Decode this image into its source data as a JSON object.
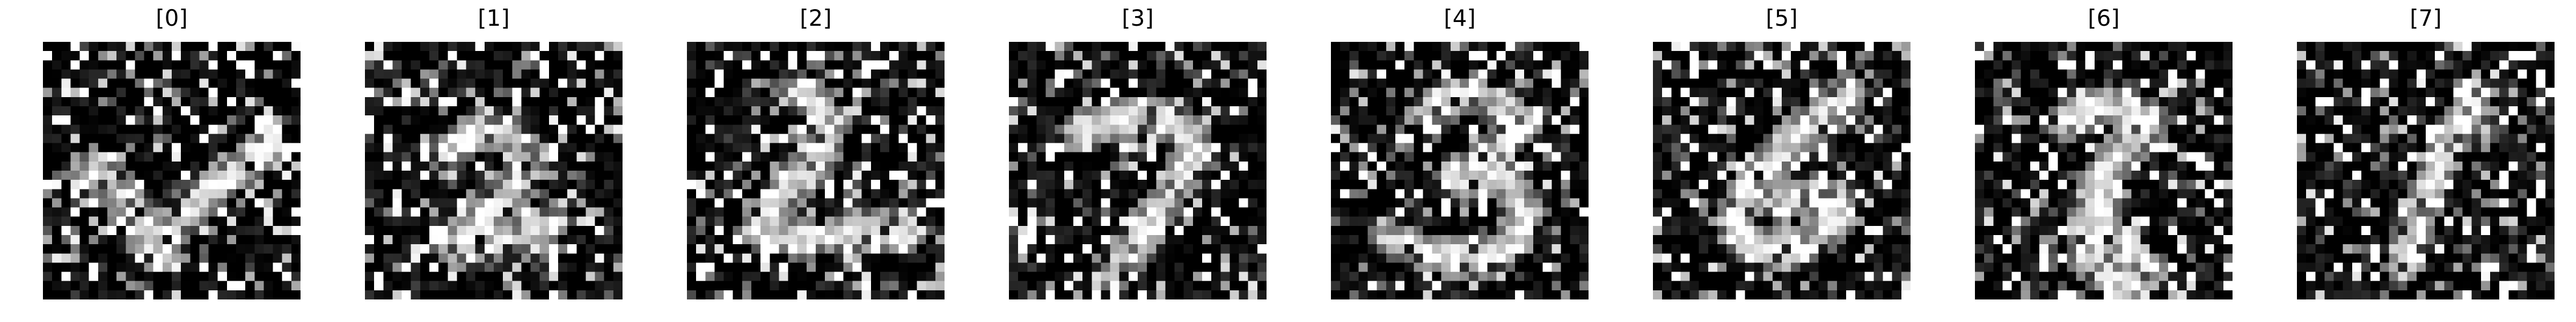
{
  "figure": {
    "background": "#ffffff",
    "colormap": "gray",
    "panels": [
      {
        "title": "[0]",
        "content": "noisy-digit-4-like"
      },
      {
        "title": "[1]",
        "content": "noisy-digit-2"
      },
      {
        "title": "[2]",
        "content": "noisy-digit-2"
      },
      {
        "title": "[3]",
        "content": "noisy-digit-7"
      },
      {
        "title": "[4]",
        "content": "noisy-digit-3"
      },
      {
        "title": "[5]",
        "content": "noisy-digit-6"
      },
      {
        "title": "[6]",
        "content": "noisy-digit-8"
      },
      {
        "title": "[7]",
        "content": "noisy-digit-1"
      }
    ]
  }
}
